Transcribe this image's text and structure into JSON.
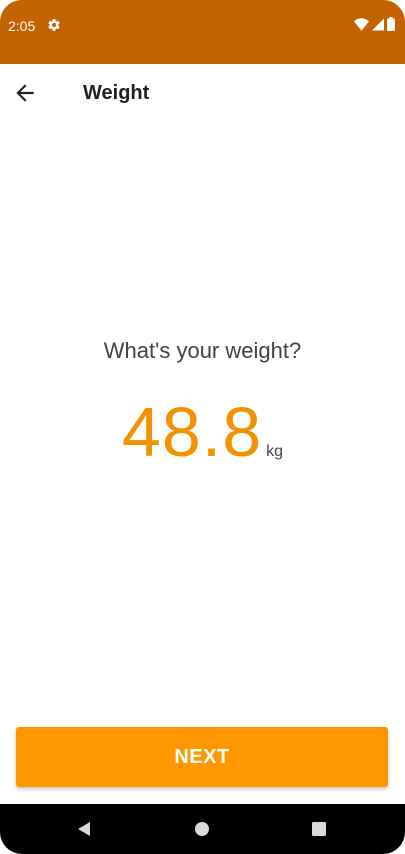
{
  "status_bar": {
    "time": "2:05",
    "icons": [
      "settings-gear-icon",
      "wifi-icon",
      "signal-icon",
      "battery-icon"
    ],
    "background": "#C26200"
  },
  "appbar": {
    "back_icon": "arrow-left-icon",
    "title": "Weight"
  },
  "main": {
    "question": "What's your weight?",
    "weight_value": "48.8",
    "weight_unit": "kg",
    "accent_color": "#F39200"
  },
  "footer": {
    "next_label": "NEXT",
    "button_color": "#FF9800"
  },
  "navbar": {
    "icons": [
      "nav-back-icon",
      "nav-home-icon",
      "nav-recents-icon"
    ]
  }
}
